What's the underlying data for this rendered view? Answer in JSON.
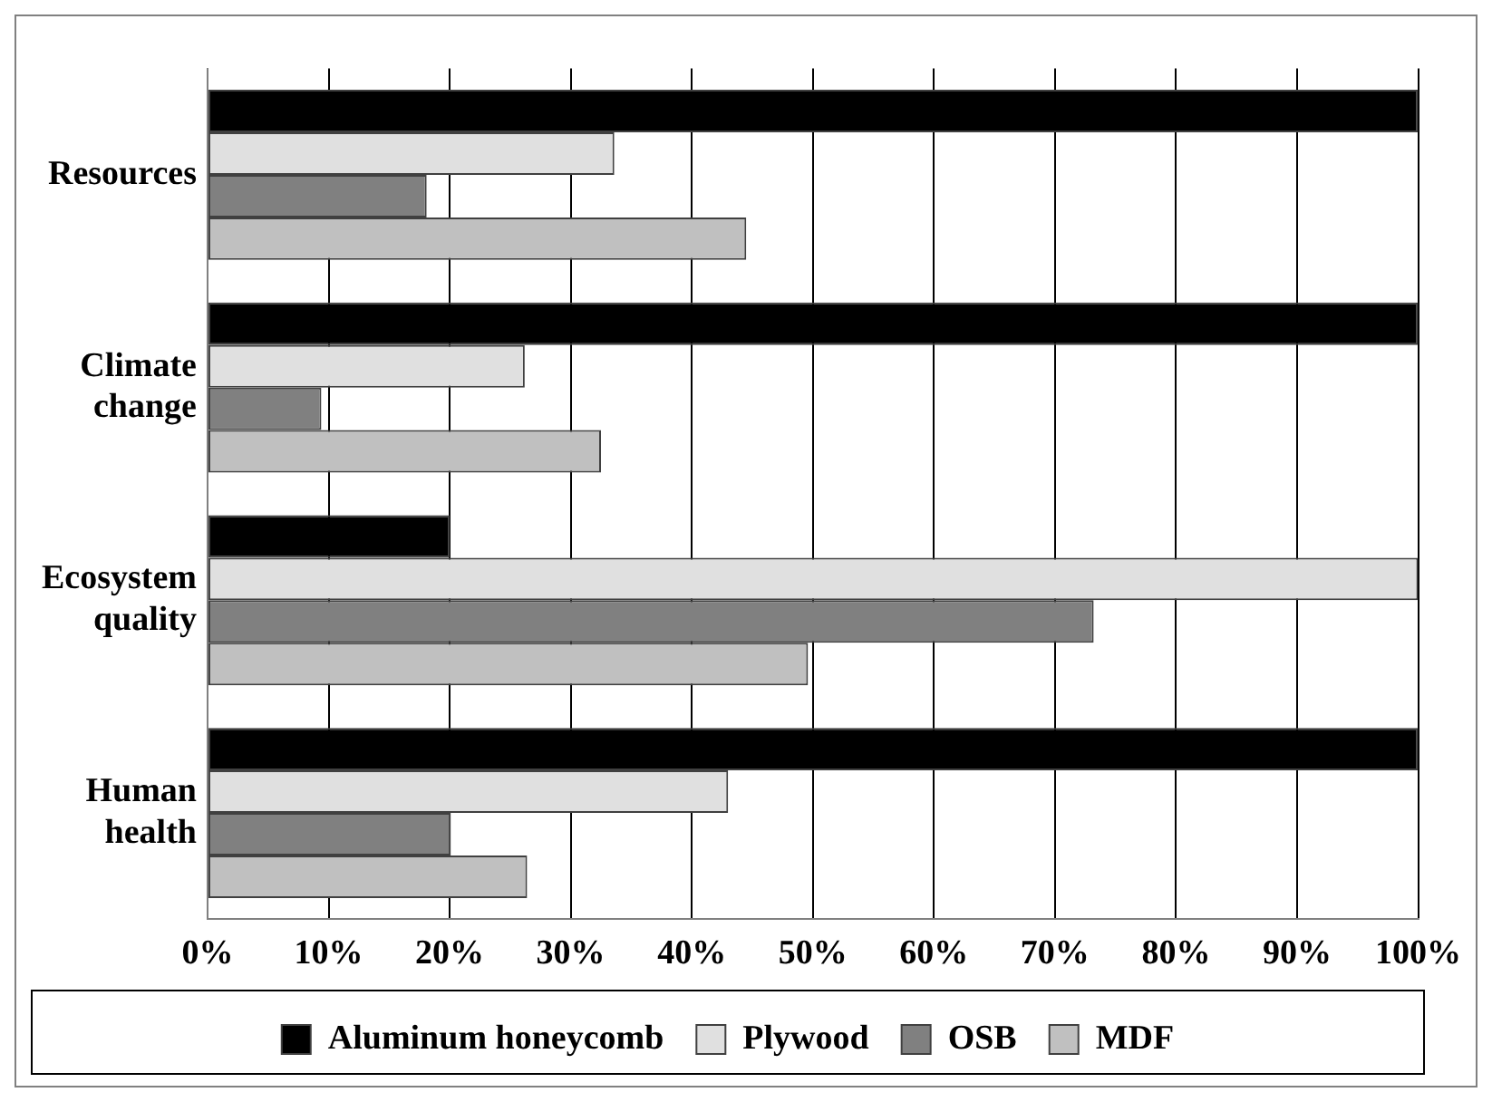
{
  "chart_data": {
    "type": "bar",
    "orientation": "horizontal",
    "categories": [
      "Resources",
      "Climate change",
      "Ecosystem quality",
      "Human health"
    ],
    "series": [
      {
        "name": "Aluminum honeycomb",
        "color": "#000000",
        "values": [
          100,
          100,
          20,
          100
        ]
      },
      {
        "name": "Plywood",
        "color": "#e0e0e0",
        "values": [
          33.6,
          26.2,
          100,
          43
        ]
      },
      {
        "name": "OSB",
        "color": "#808080",
        "values": [
          18.1,
          9.4,
          73.2,
          20.1
        ]
      },
      {
        "name": "MDF",
        "color": "#c0c0c0",
        "values": [
          44.5,
          32.5,
          49.6,
          26.4
        ]
      }
    ],
    "xlim": [
      0,
      100
    ],
    "xticks": [
      {
        "value": 0,
        "label": "0%"
      },
      {
        "value": 10,
        "label": "10%"
      },
      {
        "value": 20,
        "label": "20%"
      },
      {
        "value": 30,
        "label": "30%"
      },
      {
        "value": 40,
        "label": "40%"
      },
      {
        "value": 50,
        "label": "50%"
      },
      {
        "value": 60,
        "label": "60%"
      },
      {
        "value": 70,
        "label": "70%"
      },
      {
        "value": 80,
        "label": "80%"
      },
      {
        "value": 90,
        "label": "90%"
      },
      {
        "value": 100,
        "label": "100%"
      }
    ],
    "grid": "x",
    "legend": "bottom"
  }
}
